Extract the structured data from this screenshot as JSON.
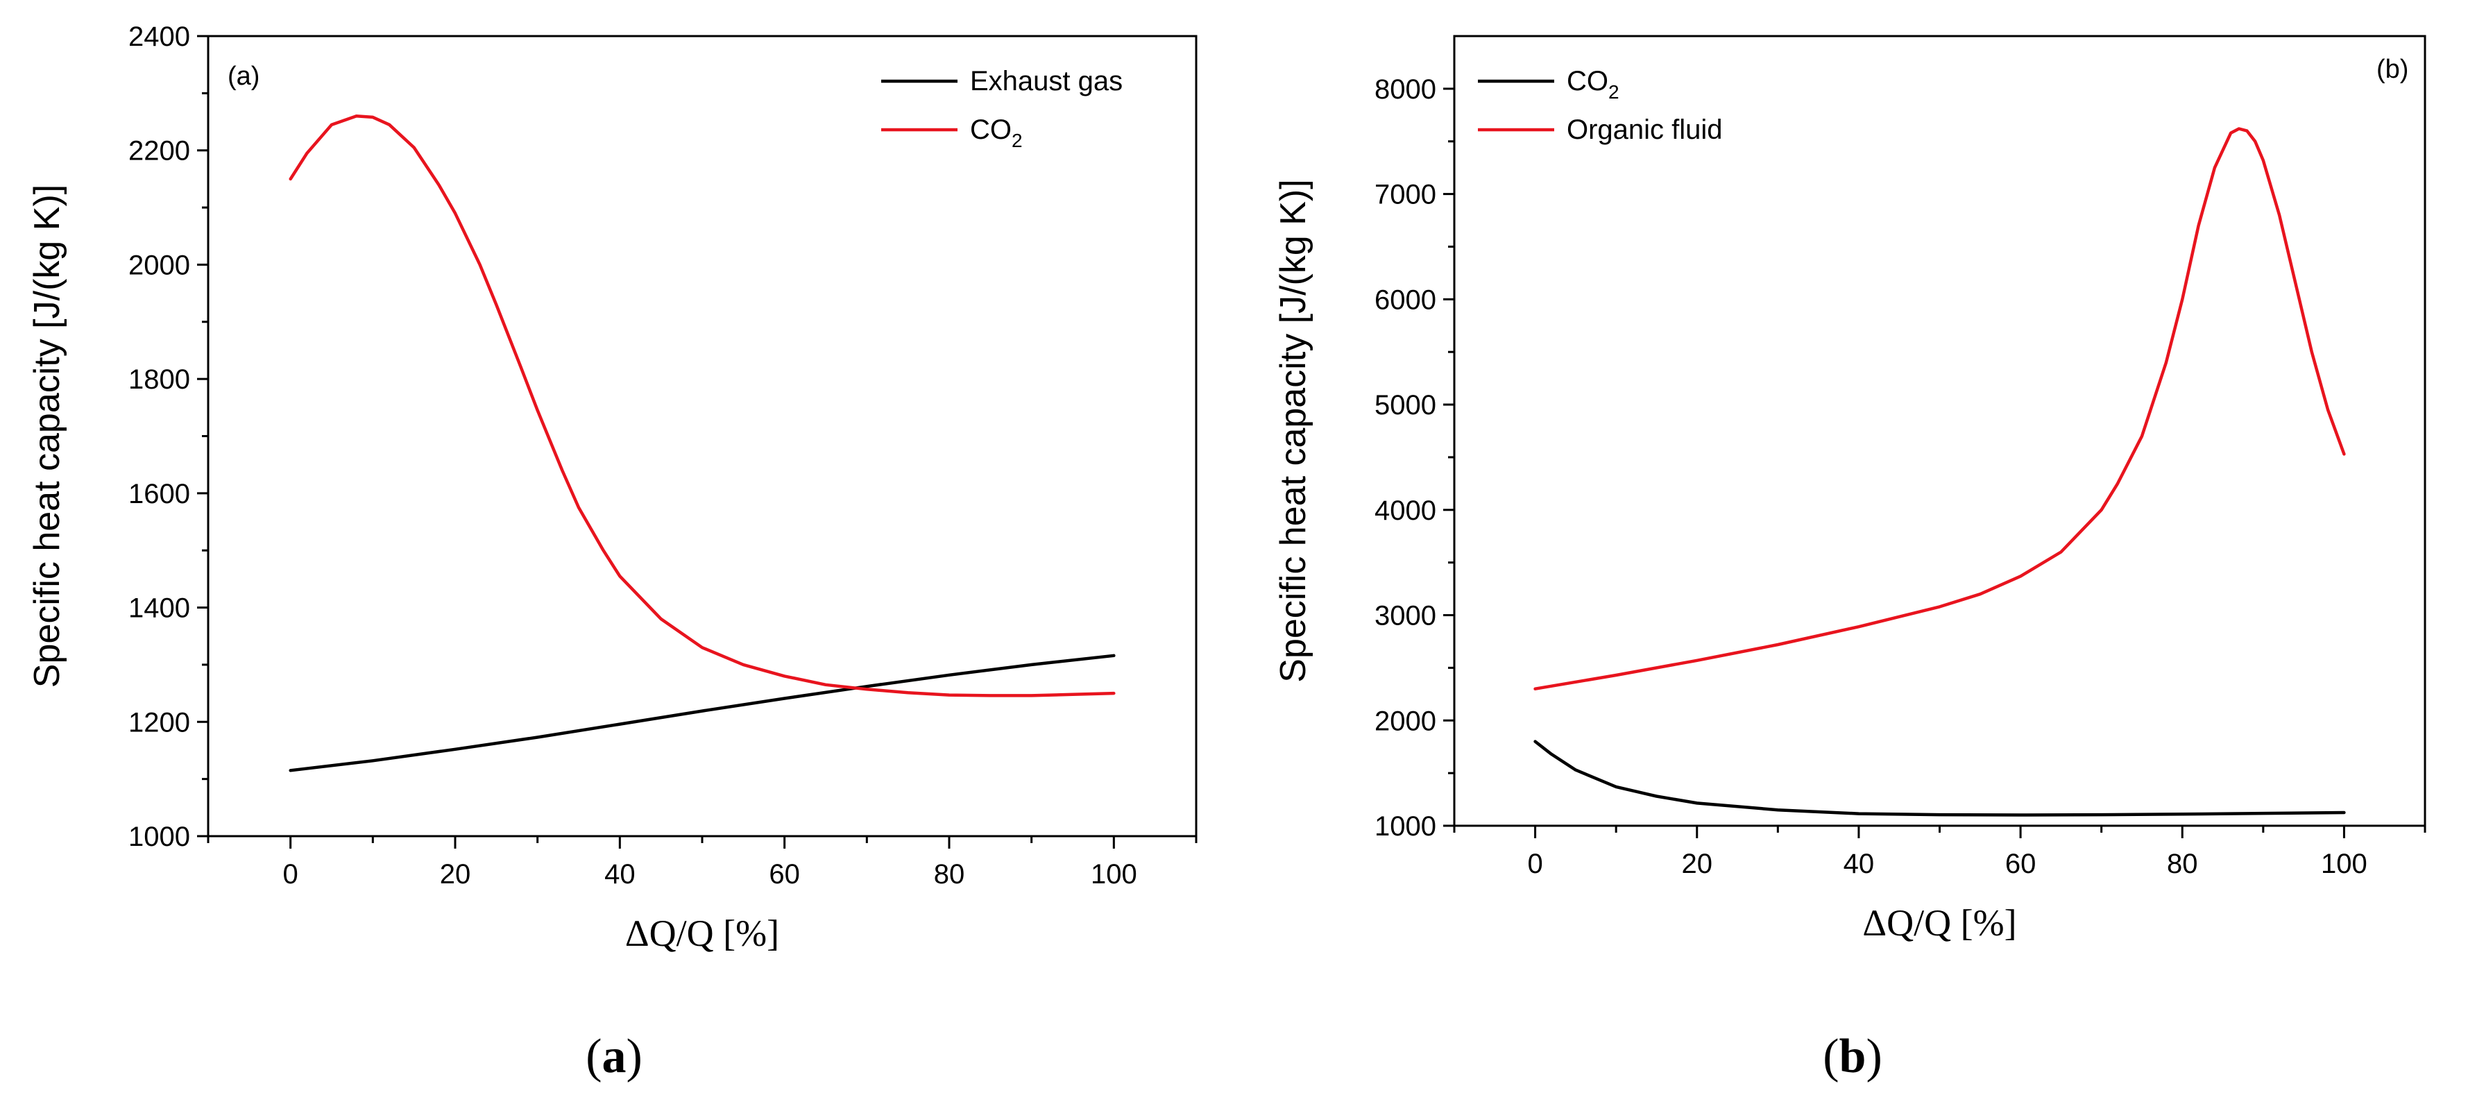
{
  "chart_data": [
    {
      "type": "line",
      "panel_tag": "(a)",
      "caption_open": "(",
      "caption_letter": "a",
      "caption_close": ")",
      "xlabel": "ΔQ/Q [%]",
      "ylabel": "Specific heat capacity [J/(kg K)]",
      "xlim": [
        -10,
        110
      ],
      "ylim": [
        1000,
        2400
      ],
      "xticks": [
        0,
        20,
        40,
        60,
        80,
        100
      ],
      "yticks": [
        1000,
        1200,
        1400,
        1600,
        1800,
        2000,
        2200,
        2400
      ],
      "legend_position": "top-right",
      "series": [
        {
          "name": "Exhaust gas",
          "color": "#000000",
          "x": [
            0,
            10,
            20,
            30,
            40,
            50,
            60,
            70,
            80,
            90,
            100
          ],
          "y": [
            1115,
            1132,
            1152,
            1173,
            1196,
            1219,
            1241,
            1262,
            1282,
            1300,
            1316
          ]
        },
        {
          "name": "CO2",
          "name_main": "CO",
          "name_sub": "2",
          "color": "#e8141e",
          "x": [
            0,
            2,
            5,
            8,
            10,
            12,
            15,
            18,
            20,
            23,
            25,
            28,
            30,
            33,
            35,
            38,
            40,
            45,
            50,
            55,
            60,
            65,
            70,
            75,
            80,
            85,
            90,
            95,
            100
          ],
          "y": [
            2150,
            2195,
            2245,
            2260,
            2258,
            2245,
            2205,
            2140,
            2090,
            2000,
            1930,
            1820,
            1745,
            1640,
            1575,
            1500,
            1455,
            1380,
            1330,
            1300,
            1280,
            1265,
            1257,
            1251,
            1247,
            1246,
            1246,
            1248,
            1250
          ]
        }
      ]
    },
    {
      "type": "line",
      "panel_tag": "(b)",
      "caption_open": "(",
      "caption_letter": "b",
      "caption_close": ")",
      "xlabel": "ΔQ/Q [%]",
      "ylabel": "Specific heat capacity [J/(kg K)]",
      "xlim": [
        -10,
        110
      ],
      "ylim": [
        1000,
        8500
      ],
      "xticks": [
        0,
        20,
        40,
        60,
        80,
        100
      ],
      "yticks": [
        1000,
        2000,
        3000,
        4000,
        5000,
        6000,
        7000,
        8000
      ],
      "legend_position": "top-left",
      "series": [
        {
          "name": "CO2",
          "name_main": "CO",
          "name_sub": "2",
          "color": "#000000",
          "x": [
            0,
            2,
            5,
            10,
            15,
            20,
            30,
            40,
            50,
            60,
            70,
            80,
            90,
            100
          ],
          "y": [
            1800,
            1680,
            1530,
            1370,
            1280,
            1215,
            1150,
            1115,
            1105,
            1102,
            1105,
            1110,
            1118,
            1125
          ]
        },
        {
          "name": "Organic fluid",
          "color": "#e8141e",
          "x": [
            0,
            10,
            20,
            30,
            40,
            50,
            55,
            60,
            65,
            70,
            72,
            75,
            78,
            80,
            82,
            84,
            86,
            87,
            88,
            89,
            90,
            92,
            94,
            96,
            98,
            100
          ],
          "y": [
            2300,
            2430,
            2570,
            2720,
            2890,
            3080,
            3200,
            3370,
            3600,
            4000,
            4250,
            4700,
            5400,
            6000,
            6700,
            7250,
            7580,
            7620,
            7600,
            7500,
            7320,
            6800,
            6150,
            5500,
            4950,
            4530
          ]
        }
      ]
    }
  ]
}
